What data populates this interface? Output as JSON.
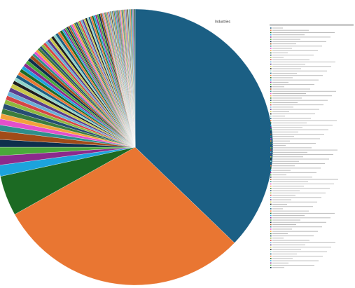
{
  "chart_data": {
    "type": "pie",
    "title": "Industries",
    "categories": [
      null,
      null,
      null,
      null,
      null,
      null,
      null,
      null,
      null,
      null,
      null,
      null,
      null,
      null,
      null,
      null,
      null,
      null,
      null,
      null,
      null,
      null,
      null,
      null,
      null,
      null,
      null,
      null,
      null,
      null,
      null,
      null,
      null,
      null,
      null,
      null,
      null,
      null,
      null,
      null,
      null,
      null,
      null,
      null,
      null,
      null,
      null,
      null,
      null,
      null,
      null,
      null,
      null,
      null,
      null,
      null,
      null,
      null,
      null,
      null,
      null,
      null,
      null,
      null,
      null,
      null,
      null,
      null,
      null,
      null,
      null,
      null,
      null,
      null,
      null,
      null,
      null,
      null,
      null,
      null,
      null,
      null,
      null,
      null,
      null,
      null,
      null,
      null,
      null,
      null,
      null,
      null,
      null,
      null,
      null,
      null,
      null,
      null,
      null,
      null,
      null,
      null,
      null,
      null,
      null,
      null,
      null
    ],
    "values": [
      37.2,
      29.7,
      4.7,
      1.3,
      1.1,
      1.0,
      0.9,
      1.0,
      0.7,
      0.7,
      0.6,
      0.6,
      0.6,
      0.5,
      0.5,
      0.5,
      0.5,
      0.5,
      0.4,
      0.4,
      0.4,
      0.4,
      0.4,
      0.4,
      0.4,
      0.4,
      0.4,
      0.4,
      0.3,
      0.3,
      0.3,
      0.3,
      0.3,
      0.3,
      0.3,
      0.3,
      0.3,
      0.3,
      0.3,
      0.3,
      0.3,
      0.3,
      0.3,
      0.2,
      0.2,
      0.2,
      0.2,
      0.2,
      0.2,
      0.2,
      0.2,
      0.2,
      0.2,
      0.2,
      0.2,
      0.2,
      0.2,
      0.2,
      0.2,
      0.2,
      0.2,
      0.2,
      0.2,
      0.2,
      0.2,
      0.2,
      0.2,
      0.2,
      0.1,
      0.1,
      0.1,
      0.1,
      0.1,
      0.1,
      0.1,
      0.1,
      0.1,
      0.1,
      0.1,
      0.1,
      0.1,
      0.1,
      0.1,
      0.1,
      0.1,
      0.1,
      0.1,
      0.1,
      0.1,
      0.1,
      0.1,
      0.1,
      0.1,
      0.1,
      0.1,
      0.1,
      0.1,
      0.1,
      0.1,
      0.1,
      0.1,
      0.1,
      0.1,
      0.1,
      0.1,
      0.1,
      0.1
    ],
    "colors": [
      "#1b5f84",
      "#e97632",
      "#1c6a23",
      "#1ca3dd",
      "#8c2a8c",
      "#4aa83a",
      "#0e2f4c",
      "#a14c18",
      "#2f8f8c",
      "#e34fcb",
      "#f2a23c",
      "#3c7d3c",
      "#264d73",
      "#8fb93e",
      "#d64545",
      "#6ab0d6",
      "#5b3d8c",
      "#c8c84a",
      "#1d1d1d",
      "#91d4c8"
    ]
  }
}
